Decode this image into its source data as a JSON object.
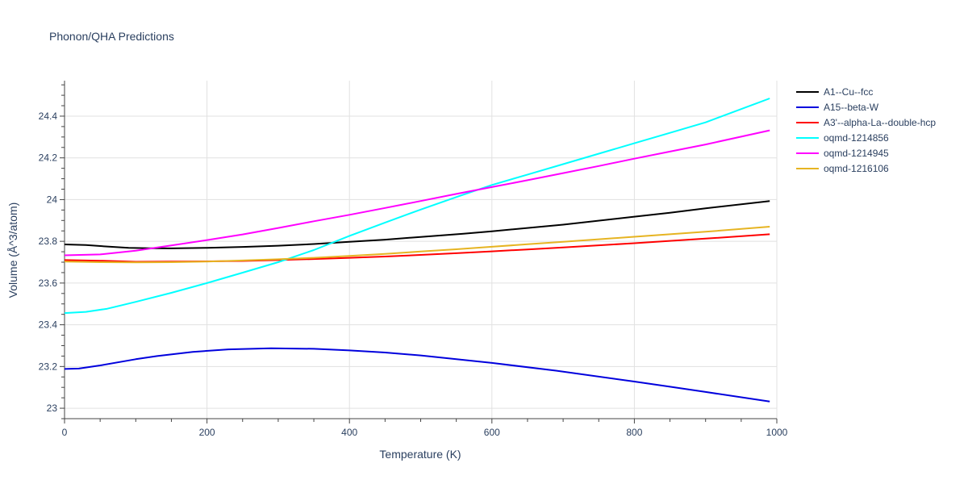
{
  "chart_data": {
    "type": "line",
    "title": "Phonon/QHA Predictions",
    "xlabel": "Temperature (K)",
    "ylabel": "Volume (Å^3/atom)",
    "xlim": [
      0,
      1000
    ],
    "ylim": [
      22.95,
      24.57
    ],
    "x_ticks": [
      0,
      200,
      400,
      600,
      800,
      1000
    ],
    "x_tick_labels": [
      "0",
      "200",
      "400",
      "600",
      "800",
      "1000"
    ],
    "y_ticks": [
      23,
      23.2,
      23.4,
      23.6,
      23.8,
      24,
      24.2,
      24.4
    ],
    "y_tick_labels": [
      "23",
      "23.2",
      "23.4",
      "23.6",
      "23.8",
      "24",
      "24.2",
      "24.4"
    ],
    "grid": true,
    "legend_position": "right",
    "series": [
      {
        "name": "A1--Cu--fcc",
        "color": "#000000",
        "x": [
          0,
          30,
          60,
          90,
          120,
          150,
          200,
          250,
          300,
          350,
          400,
          450,
          500,
          560,
          600,
          700,
          800,
          850,
          900,
          990
        ],
        "y": [
          23.785,
          23.782,
          23.775,
          23.769,
          23.767,
          23.766,
          23.769,
          23.773,
          23.779,
          23.787,
          23.798,
          23.808,
          23.821,
          23.836,
          23.848,
          23.88,
          23.918,
          23.937,
          23.958,
          23.993
        ]
      },
      {
        "name": "A15--beta-W",
        "color": "#0000dd",
        "x": [
          0,
          20,
          50,
          100,
          130,
          180,
          230,
          290,
          350,
          400,
          450,
          500,
          550,
          600,
          690,
          800,
          850,
          900,
          990
        ],
        "y": [
          23.188,
          23.19,
          23.205,
          23.235,
          23.25,
          23.27,
          23.282,
          23.287,
          23.285,
          23.277,
          23.267,
          23.253,
          23.235,
          23.217,
          23.18,
          23.128,
          23.103,
          23.078,
          23.032
        ]
      },
      {
        "name": "A3'--alpha-La--double-hcp",
        "color": "#ff0000",
        "x": [
          0,
          50,
          100,
          150,
          200,
          250,
          300,
          350,
          400,
          450,
          500,
          550,
          600,
          650,
          700,
          750,
          800,
          850,
          900,
          990
        ],
        "y": [
          23.71,
          23.707,
          23.702,
          23.703,
          23.704,
          23.706,
          23.71,
          23.715,
          23.721,
          23.727,
          23.735,
          23.743,
          23.752,
          23.761,
          23.771,
          23.781,
          23.791,
          23.802,
          23.813,
          23.834
        ]
      },
      {
        "name": "oqmd-1214856",
        "color": "#00ffff",
        "x": [
          0,
          30,
          60,
          100,
          150,
          200,
          250,
          300,
          350,
          400,
          450,
          500,
          550,
          600,
          650,
          700,
          750,
          800,
          850,
          900,
          990
        ],
        "y": [
          23.456,
          23.462,
          23.477,
          23.51,
          23.553,
          23.6,
          23.65,
          23.7,
          23.758,
          23.826,
          23.89,
          23.952,
          24.012,
          24.07,
          24.12,
          24.17,
          24.22,
          24.27,
          24.32,
          24.37,
          24.485
        ]
      },
      {
        "name": "oqmd-1214945",
        "color": "#ff00ff",
        "x": [
          0,
          50,
          100,
          150,
          200,
          250,
          300,
          350,
          400,
          450,
          500,
          550,
          600,
          650,
          700,
          750,
          800,
          850,
          900,
          990
        ],
        "y": [
          23.733,
          23.737,
          23.755,
          23.78,
          23.806,
          23.833,
          23.864,
          23.896,
          23.927,
          23.96,
          23.993,
          24.027,
          24.06,
          24.093,
          24.127,
          24.161,
          24.196,
          24.23,
          24.264,
          24.332
        ]
      },
      {
        "name": "oqmd-1216106",
        "color": "#e6b422",
        "x": [
          0,
          50,
          100,
          150,
          200,
          250,
          300,
          350,
          400,
          450,
          500,
          550,
          600,
          650,
          700,
          750,
          800,
          850,
          900,
          990
        ],
        "y": [
          23.703,
          23.7,
          23.699,
          23.7,
          23.703,
          23.708,
          23.714,
          23.721,
          23.73,
          23.74,
          23.751,
          23.762,
          23.774,
          23.786,
          23.798,
          23.81,
          23.822,
          23.834,
          23.846,
          23.87
        ]
      }
    ]
  }
}
